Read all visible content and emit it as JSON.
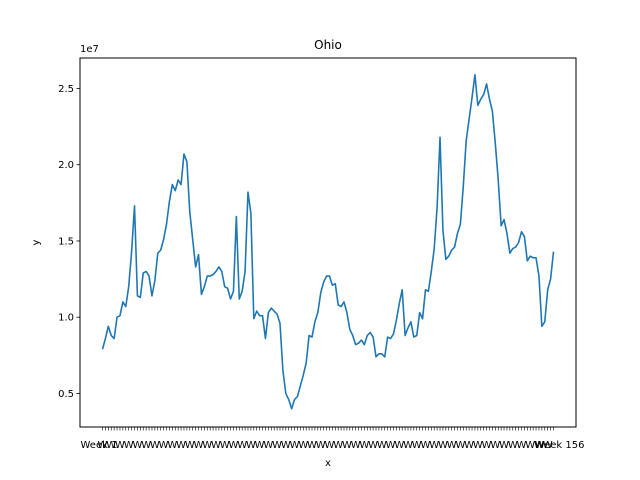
{
  "chart_data": {
    "type": "line",
    "title": "Ohio",
    "xlabel": "x",
    "ylabel": "y",
    "offset_label": "1e7",
    "ylim": [
      0.28,
      2.7
    ],
    "yticks": [
      0.5,
      1.0,
      1.5,
      2.0,
      2.5
    ],
    "ytick_labels": [
      "0.5",
      "1.0",
      "1.5",
      "2.0",
      "2.5"
    ],
    "grid": false,
    "legend": "none",
    "colors": {
      "line": "#1f77b4",
      "axes": "#000000",
      "background": "#ffffff"
    },
    "x_tick_labels_visible": [
      "Week 1",
      "Week 156"
    ],
    "series": [
      {
        "values": [
          0.79,
          0.86,
          0.94,
          0.88,
          0.86,
          1.0,
          1.01,
          1.1,
          1.07,
          1.2,
          1.43,
          1.73,
          1.14,
          1.13,
          1.29,
          1.3,
          1.27,
          1.14,
          1.24,
          1.42,
          1.44,
          1.51,
          1.61,
          1.76,
          1.87,
          1.83,
          1.9,
          1.87,
          2.07,
          2.02,
          1.69,
          1.51,
          1.33,
          1.41,
          1.15,
          1.2,
          1.27,
          1.27,
          1.28,
          1.3,
          1.33,
          1.3,
          1.2,
          1.19,
          1.12,
          1.17,
          1.66,
          1.12,
          1.17,
          1.3,
          1.82,
          1.68,
          0.99,
          1.04,
          1.01,
          1.01,
          0.86,
          1.03,
          1.06,
          1.04,
          1.02,
          0.96,
          0.65,
          0.5,
          0.46,
          0.4,
          0.46,
          0.48,
          0.55,
          0.62,
          0.7,
          0.88,
          0.87,
          0.97,
          1.03,
          1.16,
          1.23,
          1.27,
          1.27,
          1.21,
          1.22,
          1.08,
          1.07,
          1.1,
          1.03,
          0.92,
          0.88,
          0.82,
          0.83,
          0.85,
          0.82,
          0.88,
          0.9,
          0.87,
          0.74,
          0.76,
          0.76,
          0.74,
          0.87,
          0.86,
          0.89,
          0.98,
          1.09,
          1.18,
          0.88,
          0.93,
          0.97,
          0.87,
          0.88,
          1.03,
          0.99,
          1.18,
          1.17,
          1.3,
          1.45,
          1.72,
          2.18,
          1.57,
          1.38,
          1.4,
          1.44,
          1.46,
          1.55,
          1.61,
          1.86,
          2.16,
          2.3,
          2.44,
          2.59,
          2.39,
          2.43,
          2.46,
          2.53,
          2.43,
          2.35,
          2.14,
          1.9,
          1.6,
          1.64,
          1.55,
          1.42,
          1.45,
          1.46,
          1.49,
          1.56,
          1.53,
          1.37,
          1.4,
          1.39,
          1.39,
          1.27,
          0.94,
          0.97,
          1.18,
          1.25,
          1.43
        ]
      }
    ]
  }
}
